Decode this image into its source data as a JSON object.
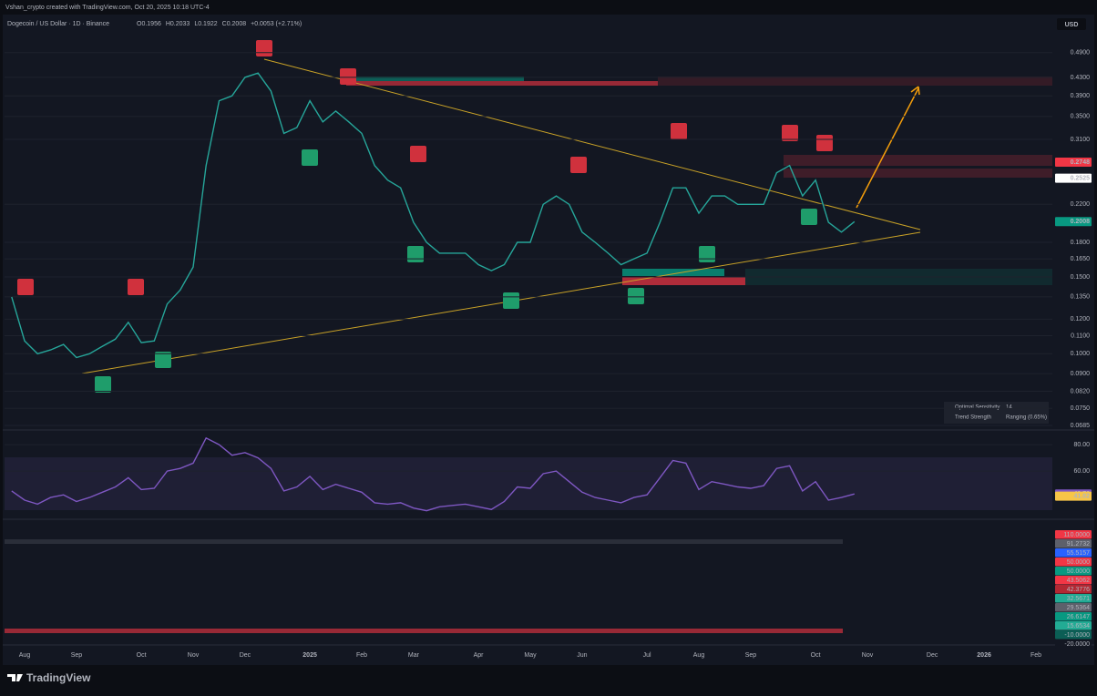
{
  "header": {
    "author_line": "Vshan_crypto created with TradingView.com, Oct 20, 2025 10:18 UTC-4",
    "symbol": "Dogecoin / US Dollar · 1D · Binance",
    "ohlc": [
      "O0.1956",
      "H0.2033",
      "L0.1922",
      "C0.2008",
      "+0.0053 (+2.71%)"
    ],
    "currency": "USD"
  },
  "indicator_table": [
    [
      "Optimal Sensitivity",
      "14"
    ],
    [
      "Trend Strength",
      "Ranging (0.65%)"
    ]
  ],
  "footer": {
    "logo": "TradingView"
  },
  "chart_data": [
    {
      "type": "line",
      "log_scale": true,
      "grid": true,
      "categories": [
        null,
        "Aug",
        null,
        null,
        null,
        "Sep",
        null,
        null,
        null,
        null,
        "Oct",
        null,
        null,
        null,
        "Nov",
        null,
        null,
        null,
        "Dec",
        null,
        null,
        null,
        null,
        "2025",
        null,
        null,
        null,
        "Feb",
        null,
        null,
        null,
        "Mar",
        null,
        null,
        null,
        null,
        "Apr",
        null,
        null,
        null,
        "May",
        null,
        null,
        null,
        "Jun",
        null,
        null,
        null,
        null,
        "Jul",
        null,
        null,
        null,
        "Aug",
        null,
        null,
        null,
        "Sep",
        null,
        null,
        null,
        null,
        "Oct",
        null,
        null,
        null,
        "Nov",
        null,
        null,
        null,
        null,
        "Dec",
        null,
        null,
        null,
        "2026",
        null,
        null,
        null,
        "Feb",
        null,
        null
      ],
      "series": [
        {
          "name": "DOGEUSD",
          "color": "#26a69a",
          "values": [
            0.135,
            0.107,
            0.1,
            0.102,
            0.105,
            0.098,
            0.1,
            0.104,
            0.108,
            0.118,
            0.106,
            0.107,
            0.13,
            0.14,
            0.158,
            0.27,
            0.38,
            0.39,
            0.43,
            0.44,
            0.4,
            0.32,
            0.33,
            0.38,
            0.34,
            0.36,
            0.34,
            0.32,
            0.27,
            0.25,
            0.24,
            0.2,
            0.18,
            0.17,
            0.17,
            0.17,
            0.16,
            0.155,
            0.16,
            0.18,
            0.18,
            0.22,
            0.23,
            0.22,
            0.19,
            0.18,
            0.17,
            0.16,
            0.165,
            0.17,
            0.2,
            0.24,
            0.24,
            0.21,
            0.23,
            0.23,
            0.22,
            0.22,
            0.22,
            0.26,
            0.27,
            0.23,
            0.25,
            0.2,
            0.19,
            0.2008,
            null,
            null,
            null,
            null,
            null,
            null,
            null,
            null,
            null,
            null,
            null,
            null,
            null,
            null,
            null,
            null
          ]
        }
      ],
      "ylim": [
        0.0675,
        0.56
      ],
      "yticks": [
        {
          "value": 0.49,
          "label": "0.4900"
        },
        {
          "value": 0.43,
          "label": "0.4300"
        },
        {
          "value": 0.39,
          "label": "0.3900"
        },
        {
          "value": 0.35,
          "label": "0.3500"
        },
        {
          "value": 0.31,
          "label": "0.3100"
        },
        {
          "value": 0.22,
          "label": "0.2200"
        },
        {
          "value": 0.18,
          "label": "0.1800"
        },
        {
          "value": 0.165,
          "label": "0.1650"
        },
        {
          "value": 0.15,
          "label": "0.1500"
        },
        {
          "value": 0.135,
          "label": "0.1350"
        },
        {
          "value": 0.12,
          "label": "0.1200"
        },
        {
          "value": 0.11,
          "label": "0.1100"
        },
        {
          "value": 0.1,
          "label": "0.1000"
        },
        {
          "value": 0.09,
          "label": "0.0900"
        },
        {
          "value": 0.082,
          "label": "0.0820"
        },
        {
          "value": 0.075,
          "label": "0.0750"
        },
        {
          "value": 0.0685,
          "label": "0.0685"
        }
      ],
      "price_labels": [
        {
          "value": 0.2748,
          "label": "0.2748",
          "color": "#f23645",
          "text_color": "#ffffff"
        },
        {
          "value": 0.2525,
          "label": "0.2525",
          "color": "#ffffff",
          "text_color": "#131722"
        },
        {
          "value": 0.2008,
          "label": "0.2008",
          "color": "#089981",
          "text_color": "#ffffff"
        }
      ]
    },
    {
      "type": "line",
      "grid": true,
      "series": [
        {
          "name": "RSI",
          "color": "#7e57c2",
          "values": [
            45,
            38,
            35,
            40,
            42,
            37,
            40,
            44,
            48,
            55,
            46,
            47,
            60,
            62,
            66,
            85,
            80,
            72,
            74,
            70,
            62,
            45,
            48,
            56,
            46,
            50,
            47,
            44,
            36,
            35,
            36,
            32,
            30,
            33,
            34,
            35,
            33,
            31,
            37,
            48,
            47,
            58,
            60,
            52,
            44,
            40,
            38,
            36,
            40,
            42,
            55,
            68,
            66,
            46,
            52,
            50,
            48,
            47,
            49,
            62,
            64,
            45,
            52,
            38,
            40,
            42.7,
            null,
            null,
            null,
            null,
            null,
            null,
            null,
            null,
            null,
            null,
            null,
            null,
            null,
            null,
            null,
            null
          ]
        }
      ],
      "ylim": [
        27,
        89
      ],
      "yticks": [
        {
          "value": 80,
          "label": "80.00"
        },
        {
          "value": 60,
          "label": "60.00"
        }
      ],
      "price_labels": [
        {
          "value": 42.7,
          "label": "42.70",
          "color": "#7e57c2",
          "text_color": "#ffffff"
        },
        {
          "value": 41.02,
          "label": "41.02",
          "color": "#f7c548",
          "text_color": "#131722"
        }
      ]
    },
    {
      "type": "badges",
      "badges": [
        {
          "label": "110.0000",
          "color": "#f23645"
        },
        {
          "label": "91.2732",
          "color": "#5d606b"
        },
        {
          "label": "55.5157",
          "color": "#2962ff"
        },
        {
          "label": "50.0000",
          "color": "#f23645"
        },
        {
          "label": "50.0000",
          "color": "#089981"
        },
        {
          "label": "43.5062",
          "color": "#f23645"
        },
        {
          "label": "42.3776",
          "color": "#b22833"
        },
        {
          "label": "32.5671",
          "color": "#22ab94"
        },
        {
          "label": "29.5364",
          "color": "#5d606b"
        },
        {
          "label": "26.6147",
          "color": "#089981"
        },
        {
          "label": "15.6534",
          "color": "#22ab94"
        },
        {
          "label": "-10.0000",
          "color": "#0b5e55"
        },
        {
          "label": "-20.0000",
          "color": "#131722"
        }
      ]
    }
  ]
}
